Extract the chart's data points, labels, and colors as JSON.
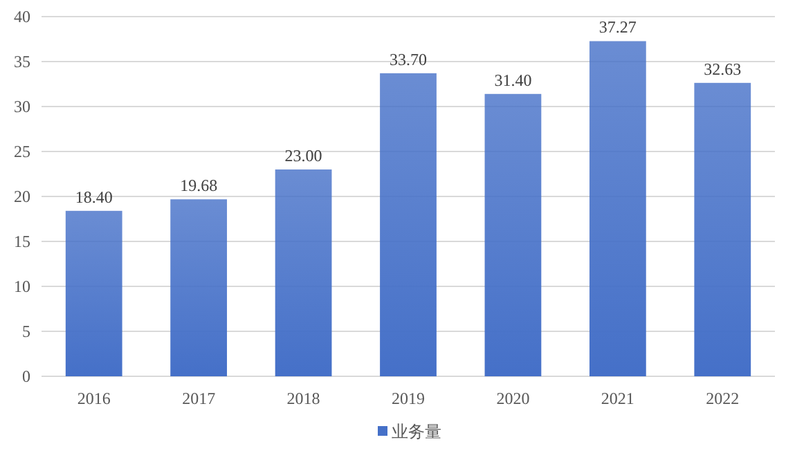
{
  "chart_data": {
    "type": "bar",
    "categories": [
      "2016",
      "2017",
      "2018",
      "2019",
      "2020",
      "2021",
      "2022"
    ],
    "series": [
      {
        "name": "业务量",
        "color": "#4570c8",
        "values": [
          18.4,
          19.68,
          23.0,
          33.7,
          31.4,
          37.27,
          32.63
        ],
        "value_labels": [
          "18.40",
          "19.68",
          "23.00",
          "33.70",
          "31.40",
          "37.27",
          "32.63"
        ]
      }
    ],
    "ylim": [
      0,
      40
    ],
    "yticks": [
      0,
      5,
      10,
      15,
      20,
      25,
      30,
      35,
      40
    ],
    "grid": "y",
    "legend": "bottom"
  }
}
